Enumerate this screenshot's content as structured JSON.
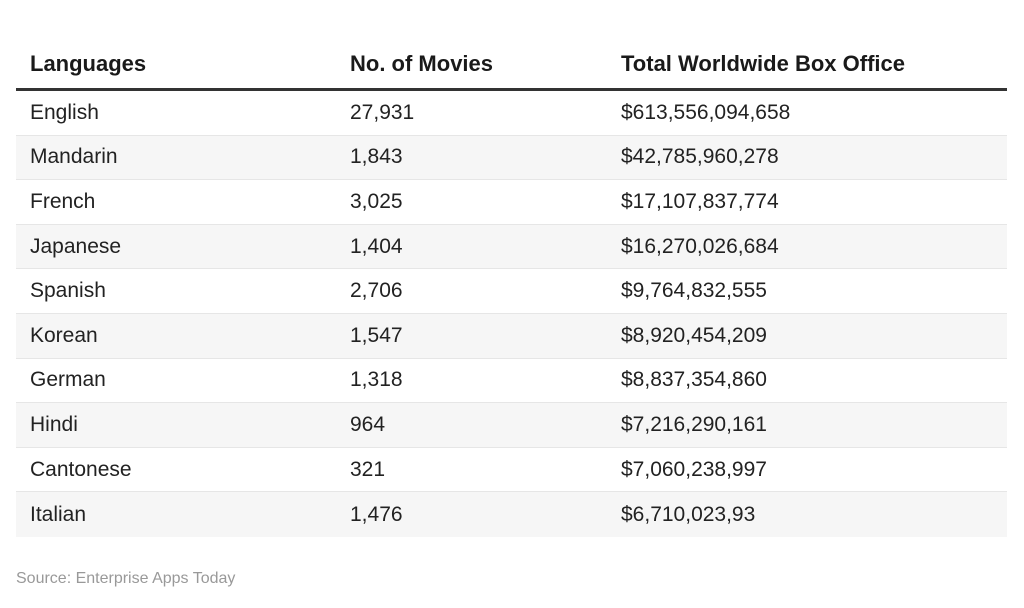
{
  "table": {
    "headers": [
      "Languages",
      "No. of Movies",
      "Total Worldwide Box Office"
    ],
    "rows": [
      [
        "English",
        "27,931",
        "$613,556,094,658"
      ],
      [
        "Mandarin",
        "1,843",
        "$42,785,960,278"
      ],
      [
        "French",
        "3,025",
        "$17,107,837,774"
      ],
      [
        "Japanese",
        "1,404",
        "$16,270,026,684"
      ],
      [
        "Spanish",
        "2,706",
        "$9,764,832,555"
      ],
      [
        "Korean",
        "1,547",
        "$8,920,454,209"
      ],
      [
        "German",
        "1,318",
        "$8,837,354,860"
      ],
      [
        "Hindi",
        "964",
        "$7,216,290,161"
      ],
      [
        "Cantonese",
        "321",
        "$7,060,238,997"
      ],
      [
        "Italian",
        "1,476",
        "$6,710,023,93"
      ]
    ]
  },
  "source": "Source: Enterprise Apps Today"
}
